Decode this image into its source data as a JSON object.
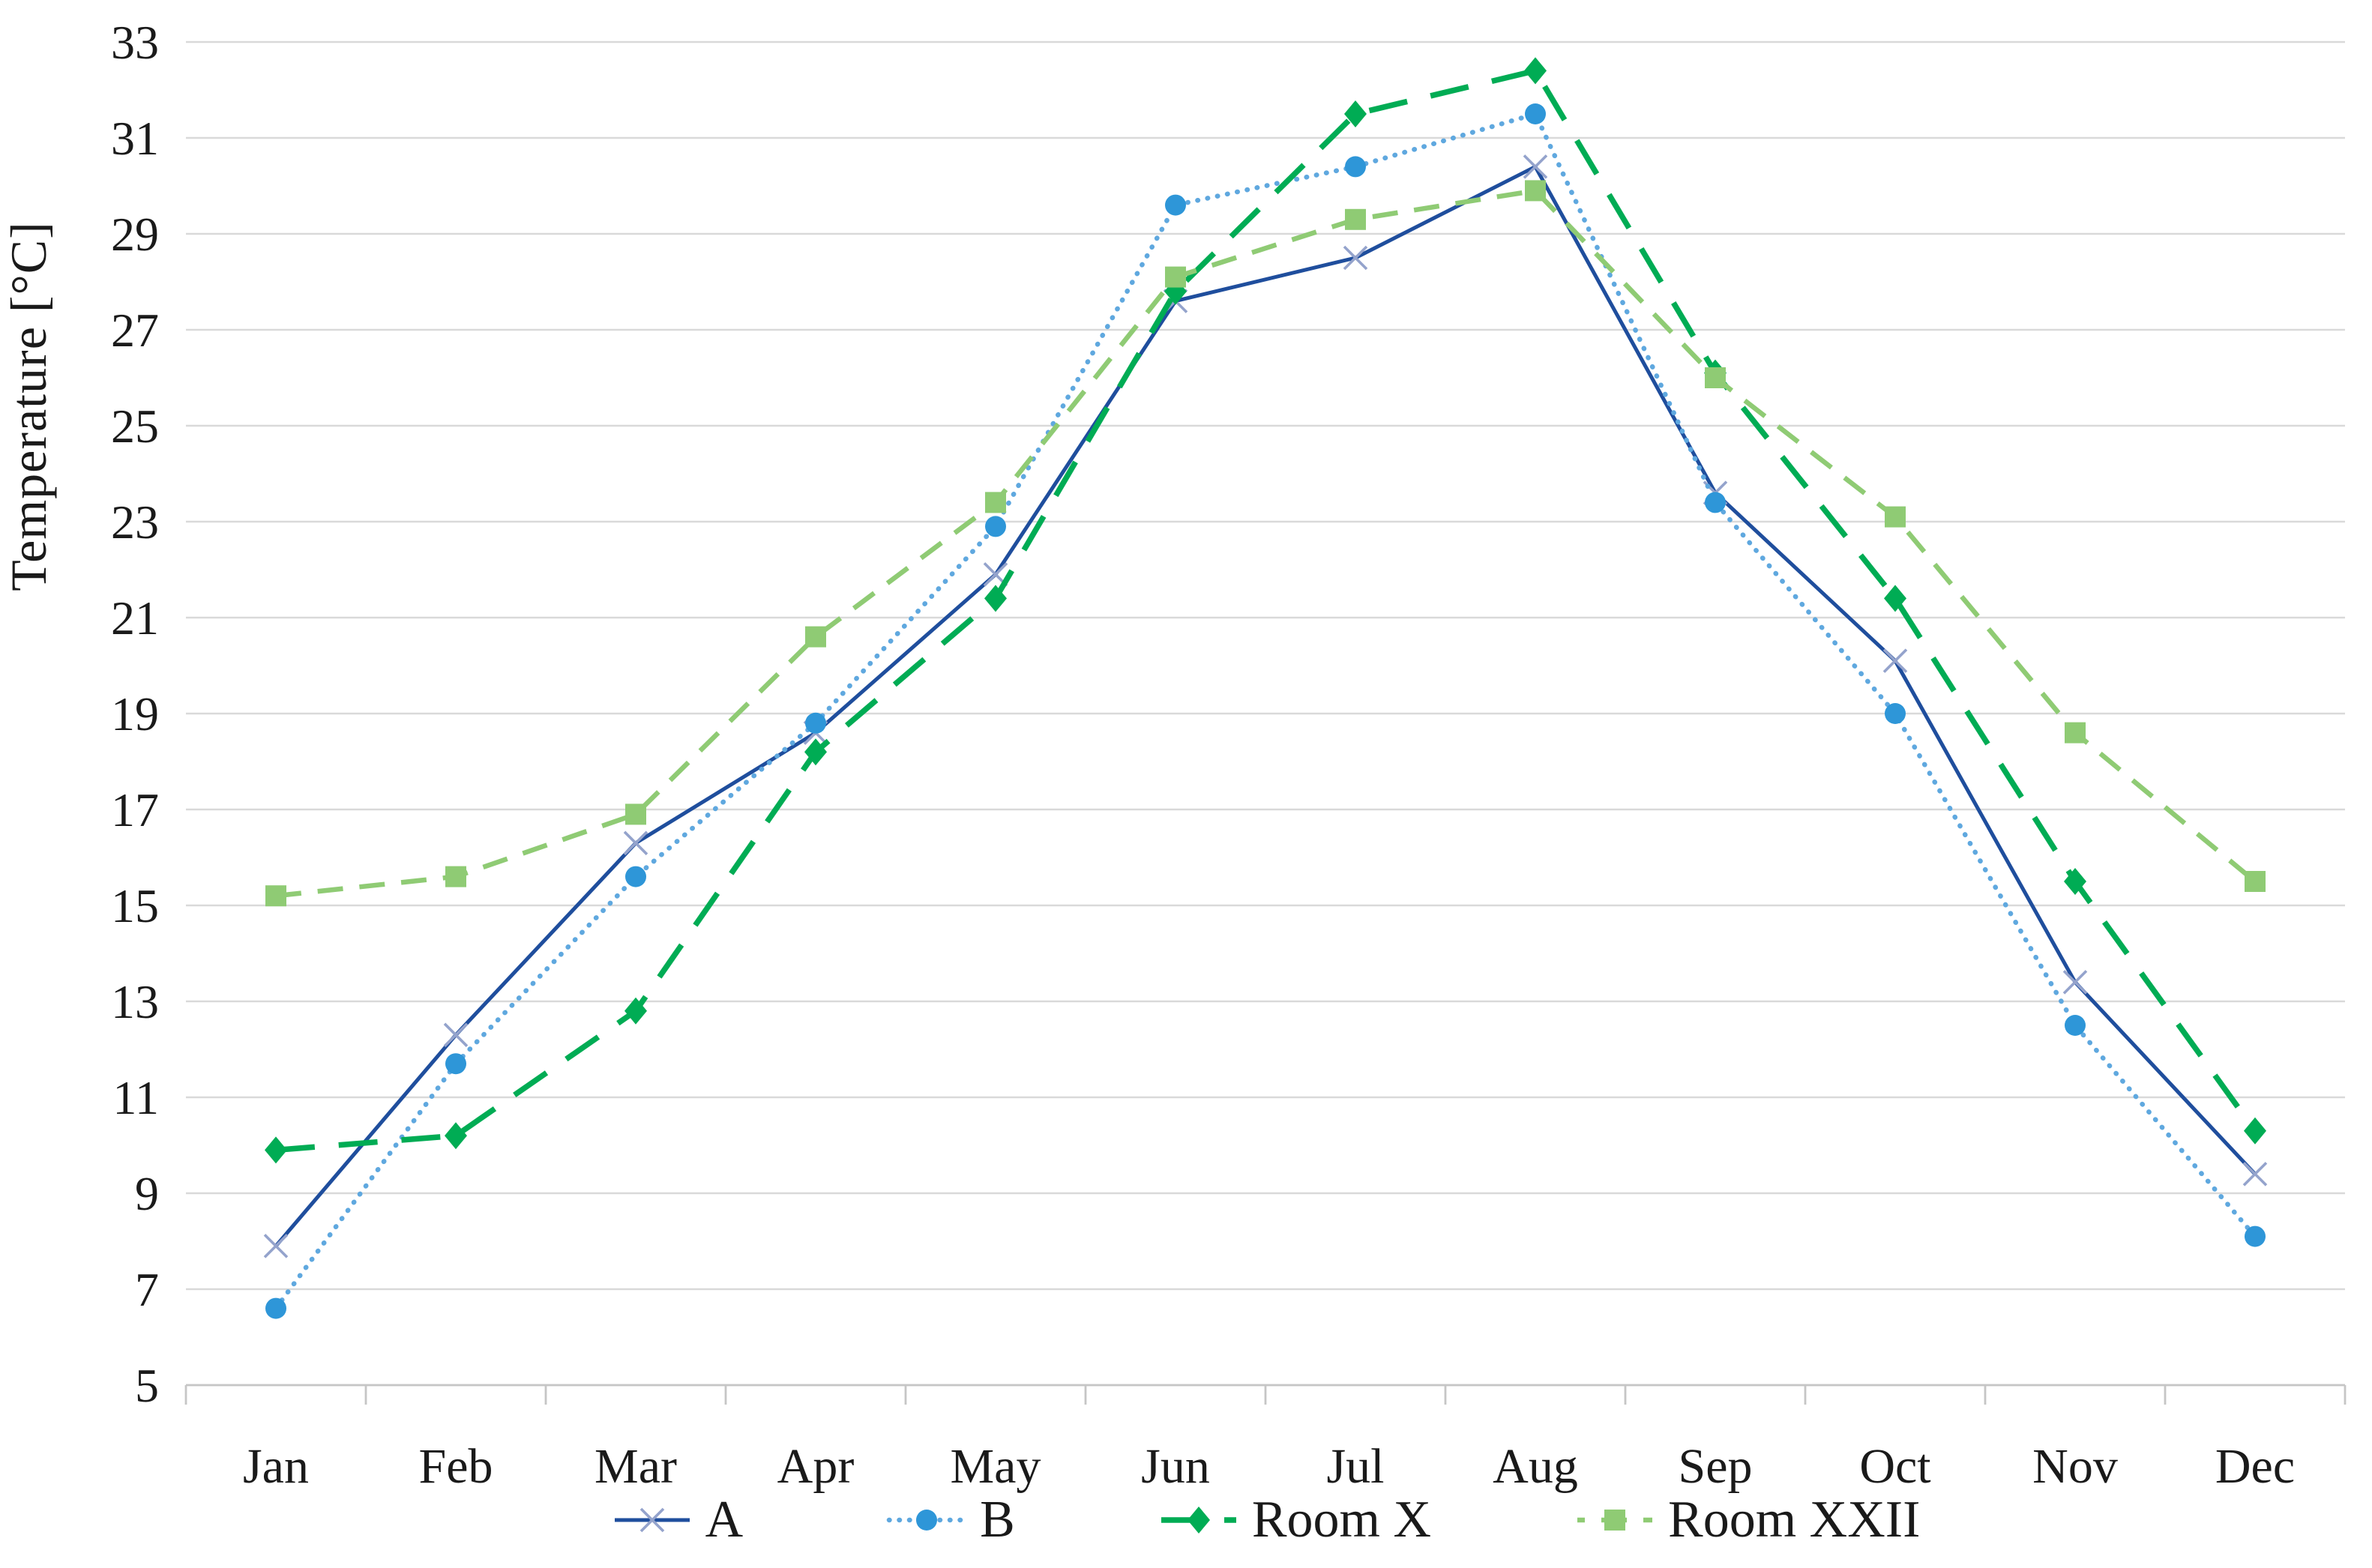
{
  "figure": {
    "background": "#ffffff"
  },
  "chart_data": {
    "type": "line",
    "title": "",
    "xlabel": "",
    "ylabel": "Temperature [°C]",
    "ylim": [
      5,
      33
    ],
    "ytick_step": 2,
    "ytick_labels": [
      "5",
      "7",
      "9",
      "11",
      "13",
      "15",
      "17",
      "19",
      "21",
      "23",
      "25",
      "27",
      "29",
      "31",
      "33"
    ],
    "grid": true,
    "legend_position": "bottom",
    "categories": [
      "Jan",
      "Feb",
      "Mar",
      "Apr",
      "May",
      "Jun",
      "Jul",
      "Aug",
      "Sep",
      "Oct",
      "Nov",
      "Dec"
    ],
    "series": [
      {
        "name": "A",
        "values": [
          7.9,
          12.3,
          16.3,
          18.6,
          21.9,
          27.6,
          28.5,
          30.4,
          23.6,
          20.1,
          13.4,
          9.4
        ],
        "line_color": "#1F4E9D",
        "line_style": "solid",
        "marker": "x-cross",
        "marker_color": "#94A3CC"
      },
      {
        "name": "B",
        "values": [
          6.6,
          11.7,
          15.6,
          18.8,
          22.9,
          29.6,
          30.4,
          31.5,
          23.4,
          19.0,
          12.5,
          8.1
        ],
        "line_color": "#5FA8DF",
        "line_style": "dotted",
        "marker": "circle",
        "marker_color": "#2E96D8"
      },
      {
        "name": "Room X",
        "values": [
          9.9,
          10.2,
          12.8,
          18.2,
          21.4,
          27.8,
          31.5,
          32.4,
          26.1,
          21.4,
          15.5,
          10.3
        ],
        "line_color": "#00AC54",
        "line_style": "long-dash",
        "marker": "diamond",
        "marker_color": "#00AC54"
      },
      {
        "name": "Room XXII",
        "values": [
          15.2,
          15.6,
          16.9,
          20.6,
          23.4,
          28.1,
          29.3,
          29.9,
          26.0,
          23.1,
          18.6,
          15.5
        ],
        "line_color": "#8FCB74",
        "line_style": "dash",
        "marker": "square",
        "marker_color": "#8FCB74"
      }
    ]
  },
  "style_colors": {
    "gridline": "#D9D9D9",
    "axis_line": "#C6C6C6",
    "text": "#1A1A1A"
  }
}
